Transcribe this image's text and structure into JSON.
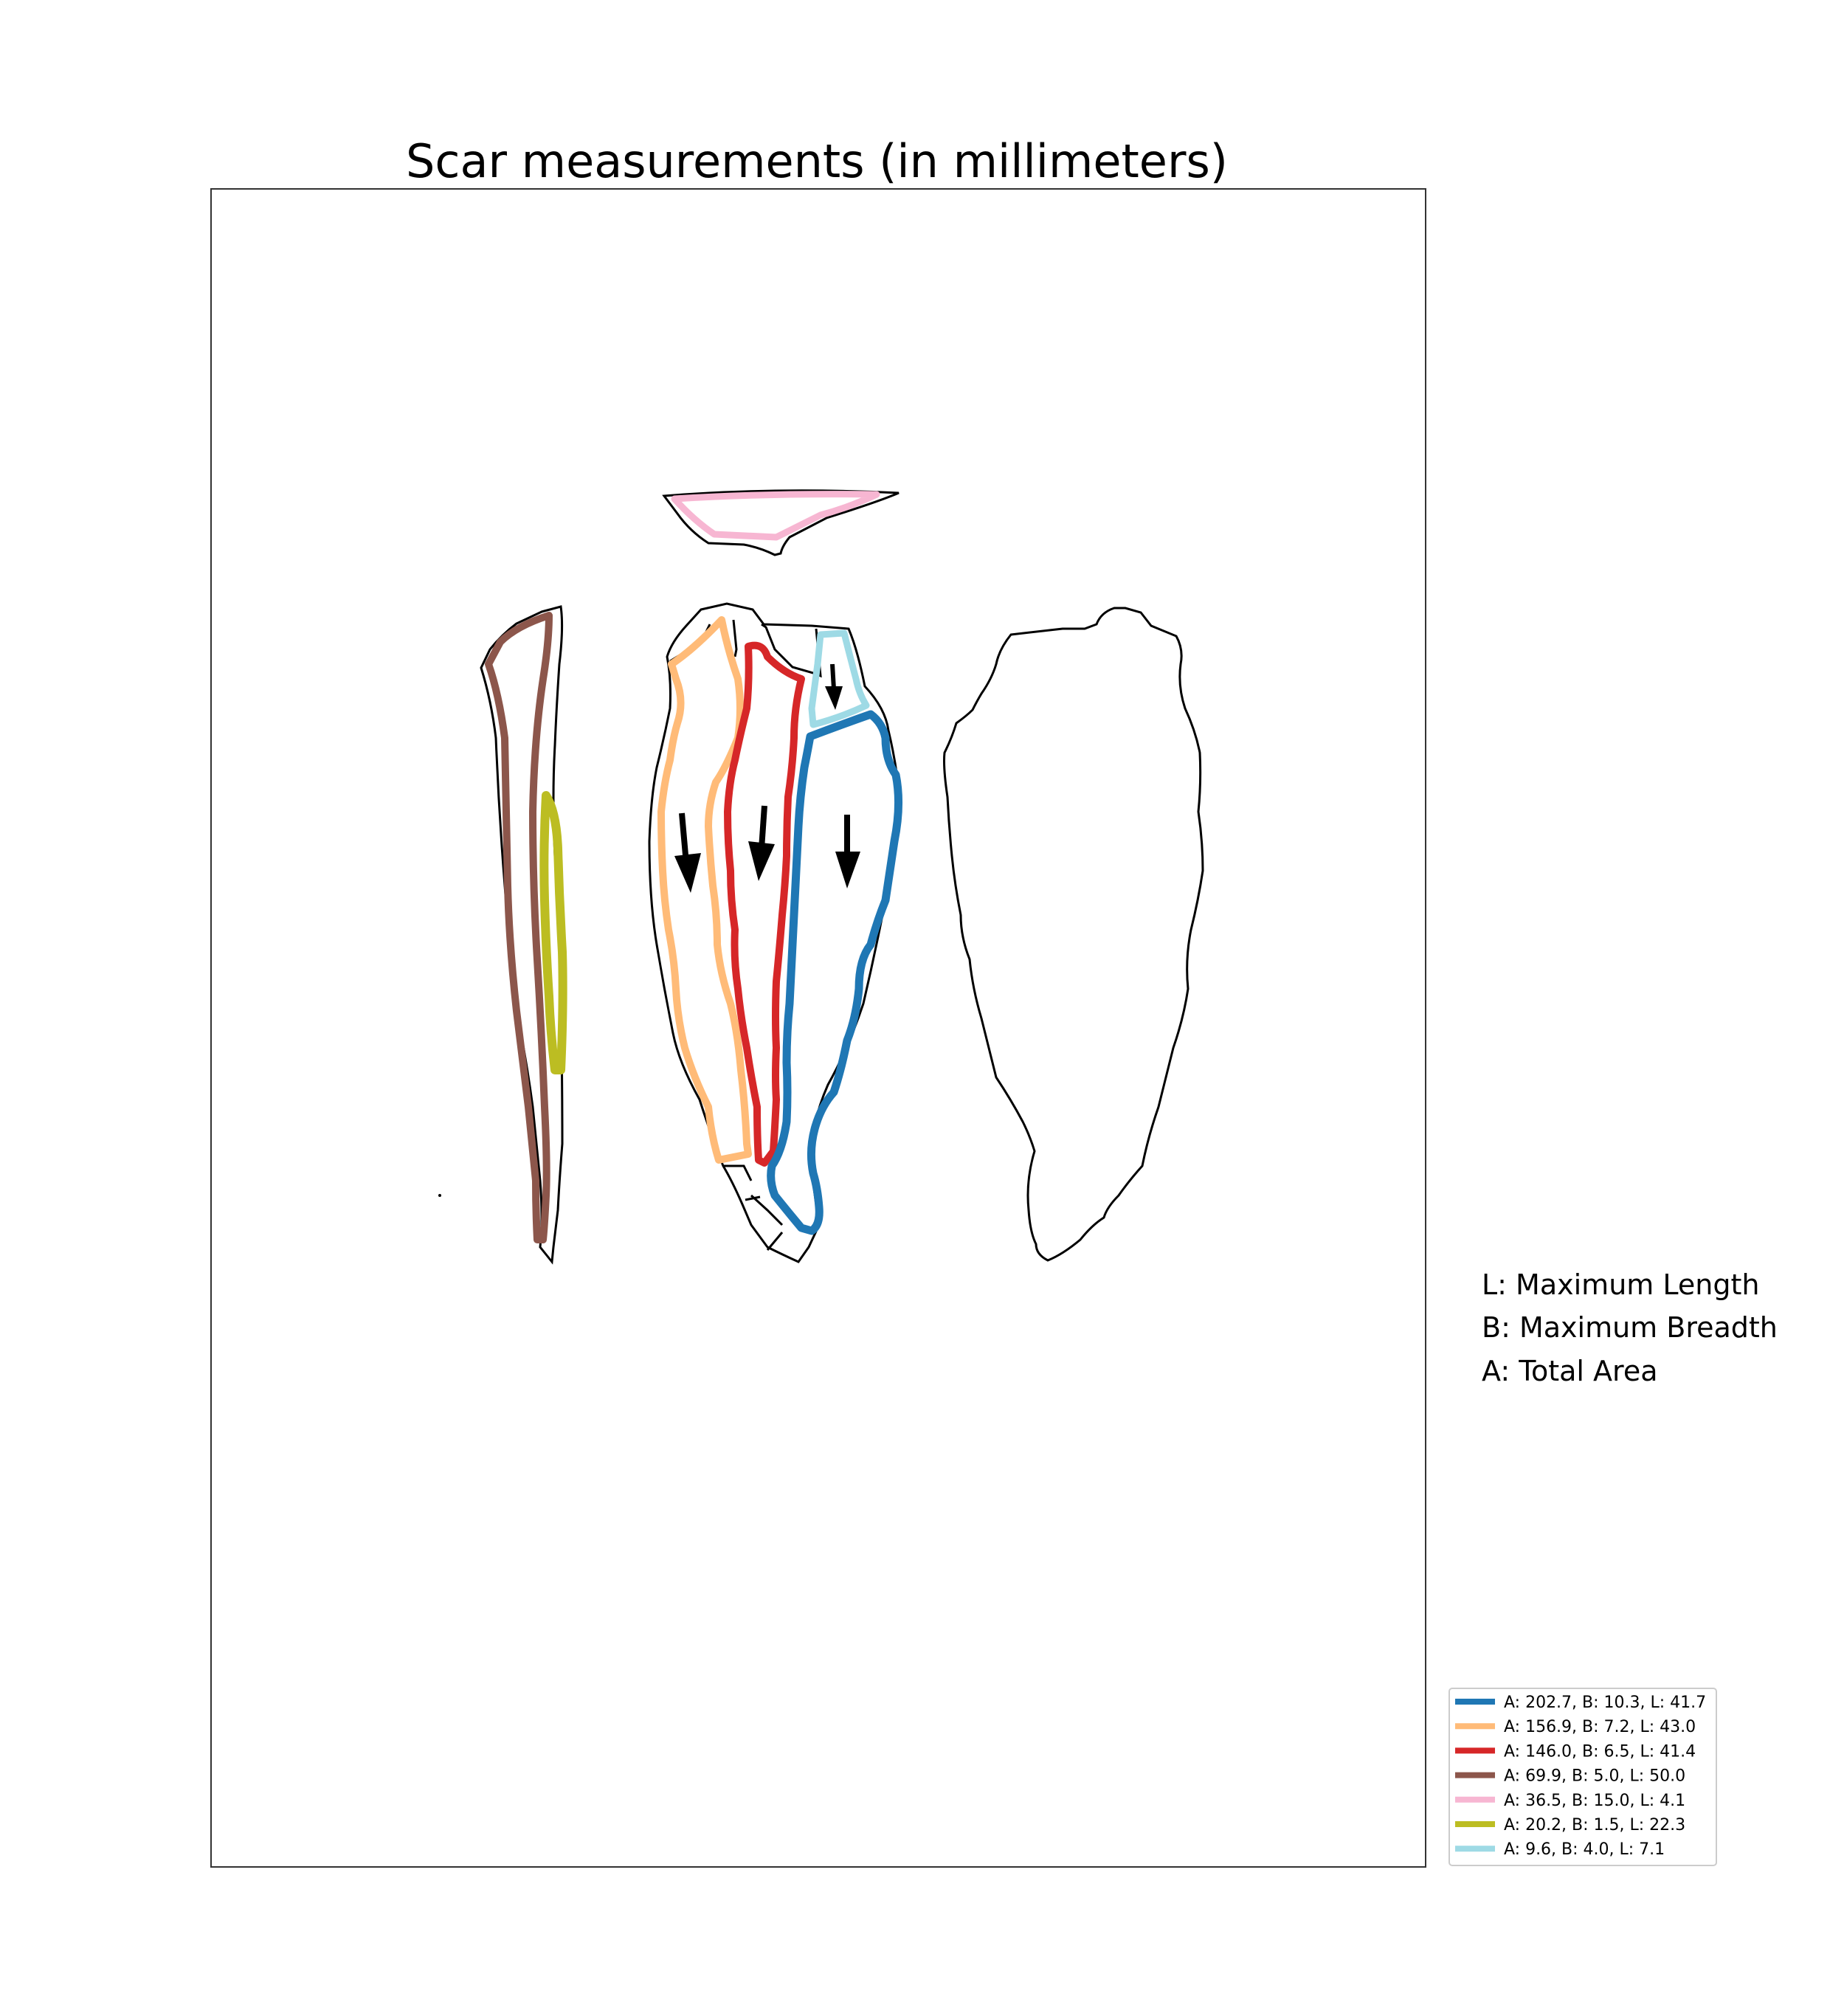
{
  "title": "Scar measurements (in millimeters)",
  "key": [
    "L: Maximum Length",
    "B: Maximum Breadth",
    "A: Total Area"
  ],
  "legend": [
    {
      "color": "#1f77b4",
      "label": "A: 202.7, B: 10.3, L: 41.7"
    },
    {
      "color": "#ffbb78",
      "label": "A: 156.9, B: 7.2, L: 43.0"
    },
    {
      "color": "#d62728",
      "label": "A: 146.0, B: 6.5, L: 41.4"
    },
    {
      "color": "#8c564b",
      "label": "A: 69.9, B: 5.0, L: 50.0"
    },
    {
      "color": "#f7b6d2",
      "label": "A: 36.5, B: 15.0, L: 4.1"
    },
    {
      "color": "#bcbd22",
      "label": "A: 20.2, B: 1.5, L: 22.3"
    },
    {
      "color": "#9edae5",
      "label": "A: 9.6, B: 4.0, L: 7.1"
    }
  ],
  "colors": {
    "scar_1": "#1f77b4",
    "scar_2": "#ffbb78",
    "scar_3": "#d62728",
    "scar_4": "#8c564b",
    "scar_5": "#f7b6d2",
    "scar_6": "#bcbd22",
    "scar_7": "#9edae5"
  },
  "scar_direction_arrows": 4
}
